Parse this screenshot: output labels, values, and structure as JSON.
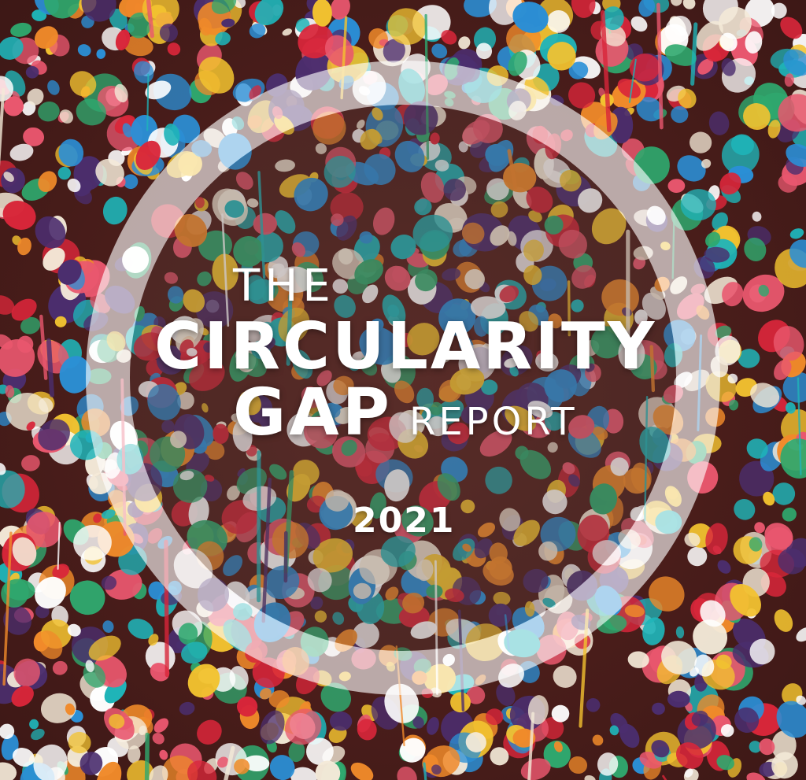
{
  "cover": {
    "title_the": "THE",
    "title_main": "CIRCULARITY",
    "title_gap": "GAP",
    "title_report": "REPORT",
    "year": "2021"
  },
  "colors": {
    "text": "#ffffff",
    "ring": "#ffffff",
    "background_wall": "#4a1f1c",
    "gum_palette": [
      "#d8263a",
      "#f4ead8",
      "#2fa86e",
      "#2b8fd6",
      "#f2c230",
      "#4b2e6e",
      "#f08a2a",
      "#e9576e",
      "#1fb4b8",
      "#ffffff"
    ]
  }
}
